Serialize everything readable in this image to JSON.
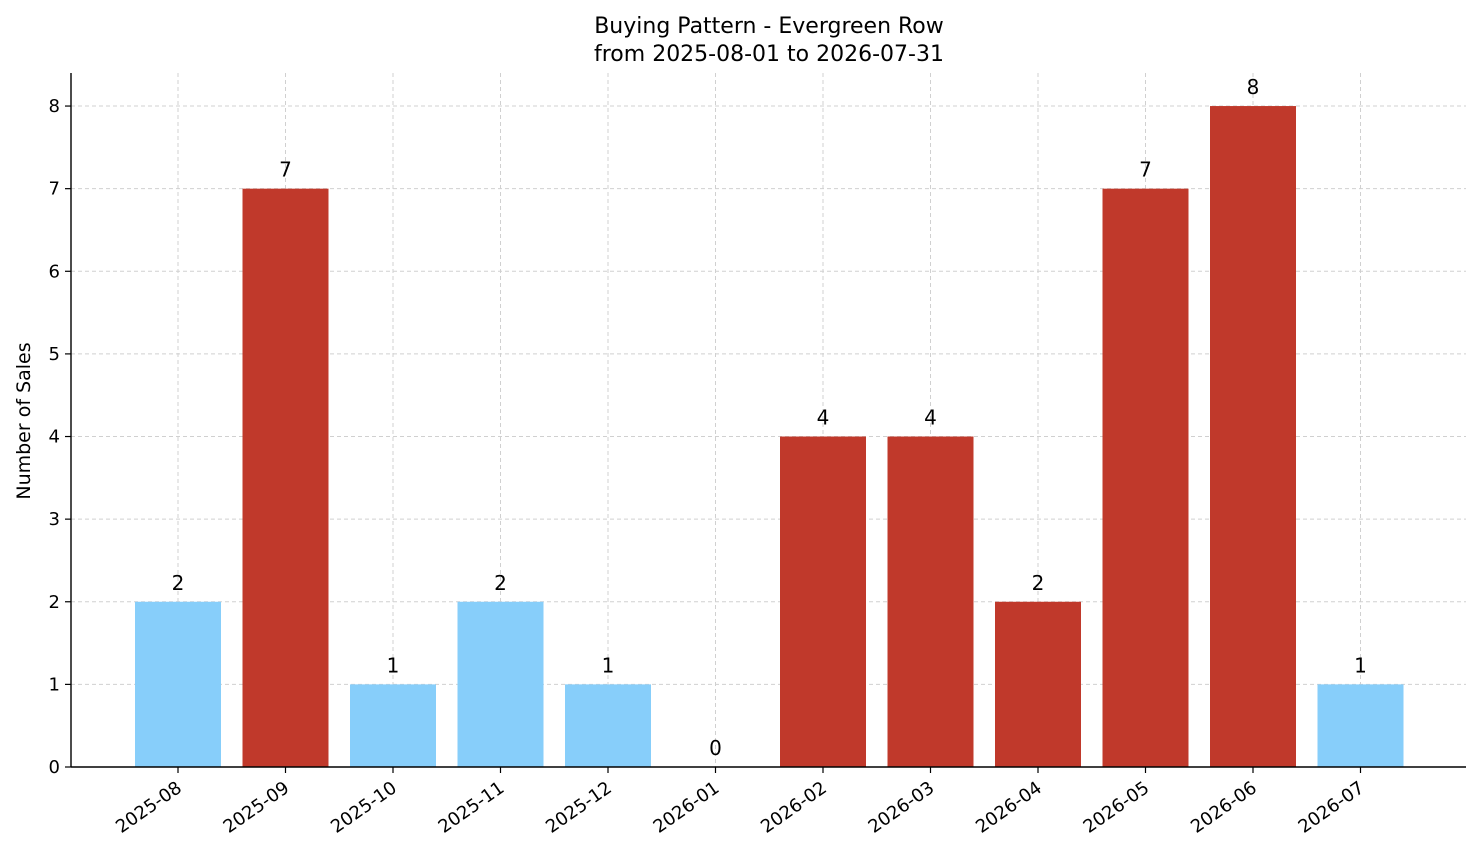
{
  "chart_data": {
    "type": "bar",
    "title": "Buying Pattern - Evergreen Row",
    "subtitle": "from 2025-08-01 to 2026-07-31",
    "xlabel": "",
    "ylabel": "Number of Sales",
    "ylim": [
      0,
      8.4
    ],
    "yticks": [
      "0",
      "1",
      "2",
      "3",
      "4",
      "5",
      "6",
      "7",
      "8"
    ],
    "grid": true,
    "categories": [
      "2025-08",
      "2025-09",
      "2025-10",
      "2025-11",
      "2025-12",
      "2026-01",
      "2026-02",
      "2026-03",
      "2026-04",
      "2026-05",
      "2026-06",
      "2026-07"
    ],
    "values": [
      2,
      7,
      1,
      2,
      1,
      0,
      4,
      4,
      2,
      7,
      8,
      1
    ],
    "bar_colors": [
      "#87CEFA",
      "#C0392B",
      "#87CEFA",
      "#87CEFA",
      "#87CEFA",
      "#87CEFA",
      "#C0392B",
      "#C0392B",
      "#C0392B",
      "#C0392B",
      "#C0392B",
      "#87CEFA"
    ],
    "data_labels": [
      "2",
      "7",
      "1",
      "2",
      "1",
      "0",
      "4",
      "4",
      "2",
      "7",
      "8",
      "1"
    ]
  }
}
